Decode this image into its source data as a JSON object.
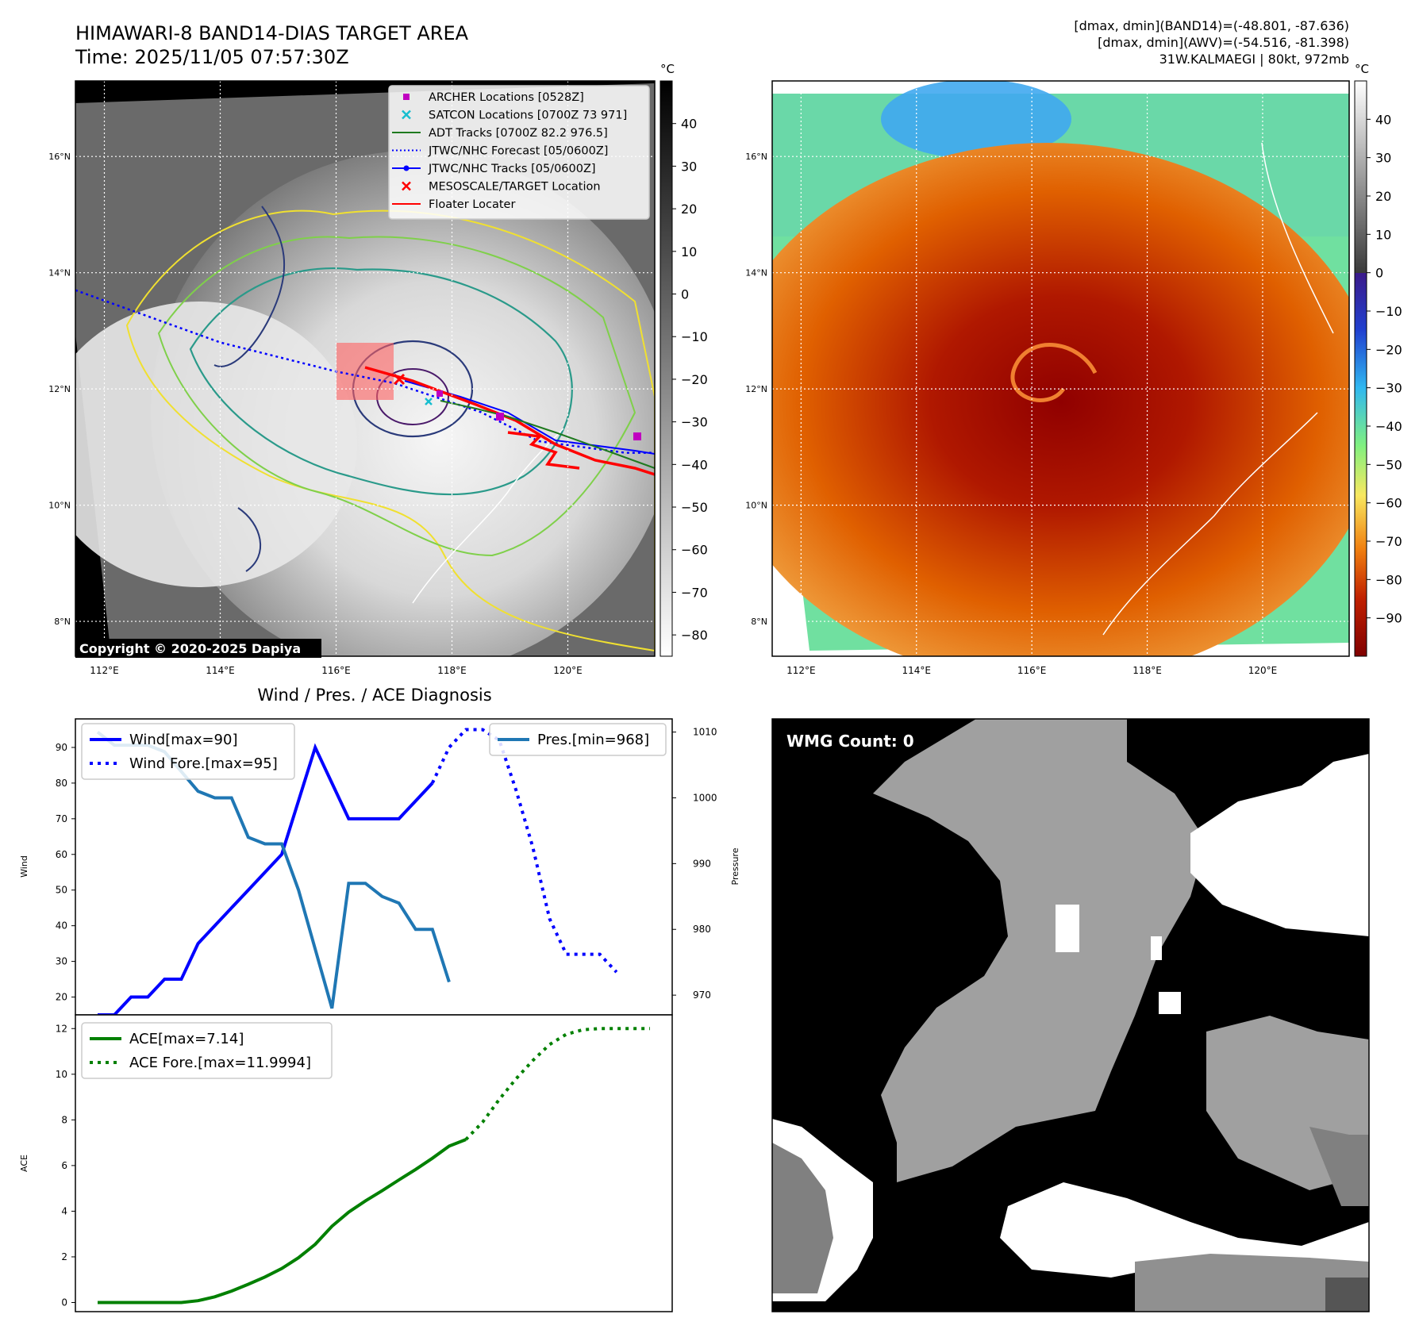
{
  "header": {
    "title_line1": "HIMAWARI-8 BAND14-DIAS TARGET AREA",
    "title_line2": "Time: 2025/11/05 07:57:30Z",
    "info_line1": "[dmax, dmin](BAND14)=(-48.801, -87.636)",
    "info_line2": "[dmax, dmin](AWV)=(-54.516, -81.398)",
    "info_line3": "31W.KALMAEGI | 80kt, 972mb"
  },
  "copyright": "Copyright © 2020-2025 Dapiya",
  "maps": {
    "lat_ticks": [
      "16°N",
      "14°N",
      "12°N",
      "10°N",
      "8°N"
    ],
    "lon_ticks": [
      "112°E",
      "114°E",
      "116°E",
      "118°E",
      "120°E"
    ],
    "gray_colorbar": {
      "unit": "°C",
      "ticks": [
        "40",
        "30",
        "20",
        "10",
        "0",
        "−10",
        "−20",
        "−30",
        "−40",
        "−50",
        "−60",
        "−70",
        "−80"
      ],
      "range": [
        -85,
        50
      ]
    },
    "color_colorbar": {
      "unit": "°C",
      "ticks": [
        "40",
        "30",
        "20",
        "10",
        "0",
        "−10",
        "−20",
        "−30",
        "−40",
        "−50",
        "−60",
        "−70",
        "−80",
        "−90"
      ],
      "range": [
        -100,
        50
      ]
    },
    "legend": [
      {
        "label": "ARCHER Locations [0528Z]",
        "color": "#c000c0",
        "marker": "square"
      },
      {
        "label": "SATCON Locations [0700Z 73 971]",
        "color": "#17becf",
        "marker": "x"
      },
      {
        "label": "ADT Tracks [0700Z 82.2 976.5]",
        "color": "#1f7a1f",
        "marker": "line"
      },
      {
        "label": "JTWC/NHC Forecast [05/0600Z]",
        "color": "#0000ff",
        "marker": "dotted"
      },
      {
        "label": "JTWC/NHC Tracks [05/0600Z]",
        "color": "#0000ff",
        "marker": "line-dot"
      },
      {
        "label": "MESOSCALE/TARGET Location",
        "color": "#ff0000",
        "marker": "x"
      },
      {
        "label": "Floater Locater",
        "color": "#ff0000",
        "marker": "line"
      }
    ],
    "jtwc_track": [
      [
        111.5,
        13.7
      ],
      [
        114,
        12.8
      ],
      [
        116,
        12.3
      ],
      [
        117.0,
        12.1
      ],
      [
        118.5,
        11.6
      ],
      [
        119.5,
        11.1
      ],
      [
        121,
        10.9
      ],
      [
        121.5,
        10.9
      ]
    ]
  },
  "wmg": {
    "title": "WMG Count: 0"
  },
  "chart_data": [
    {
      "type": "line",
      "title": "Wind / Pres. / ACE Diagnosis",
      "ylabel": "Wind",
      "y2label": "Pressure",
      "ylim": [
        15,
        98
      ],
      "y2lim": [
        967,
        1012
      ],
      "y_ticks": [
        20,
        30,
        40,
        50,
        60,
        70,
        80,
        90
      ],
      "y2_ticks": [
        970,
        980,
        990,
        1000,
        1010
      ],
      "series": [
        {
          "name": "Wind[max=90]",
          "color": "#0000ff",
          "style": "solid",
          "axis": "left",
          "values": [
            15,
            15,
            20,
            20,
            25,
            25,
            35,
            40,
            45,
            50,
            55,
            60,
            75,
            90,
            80,
            70,
            70,
            70,
            70,
            75,
            80
          ]
        },
        {
          "name": "Wind Fore.[max=95]",
          "color": "#0000ff",
          "style": "dotted",
          "axis": "left",
          "x_offset": 20,
          "values": [
            80,
            90,
            95,
            95,
            92,
            78,
            62,
            42,
            32,
            32,
            32,
            27
          ]
        },
        {
          "name": "Pres.[min=968]",
          "color": "#1f77b4",
          "style": "solid",
          "axis": "right",
          "values": [
            1010,
            1008,
            1008,
            1008,
            1007,
            1004,
            1001,
            1000,
            1000,
            994,
            993,
            993,
            986,
            977,
            968,
            987,
            987,
            985,
            984,
            980,
            980,
            972
          ]
        }
      ]
    },
    {
      "type": "line",
      "ylabel": "ACE",
      "ylim": [
        -0.4,
        12.6
      ],
      "y_ticks": [
        0,
        2,
        4,
        6,
        8,
        10,
        12
      ],
      "series": [
        {
          "name": "ACE[max=7.14]",
          "color": "#008000",
          "style": "solid",
          "values": [
            0,
            0,
            0,
            0,
            0,
            0,
            0.08,
            0.25,
            0.5,
            0.8,
            1.12,
            1.49,
            1.96,
            2.55,
            3.34,
            3.96,
            4.45,
            4.9,
            5.37,
            5.83,
            6.32,
            6.85,
            7.14
          ]
        },
        {
          "name": "ACE Fore.[max=11.9994]",
          "color": "#008000",
          "style": "dotted",
          "x_offset": 22,
          "values": [
            7.14,
            7.9,
            8.9,
            9.8,
            10.6,
            11.3,
            11.75,
            11.95,
            12.0,
            12.0,
            12.0,
            12.0
          ]
        }
      ]
    }
  ]
}
